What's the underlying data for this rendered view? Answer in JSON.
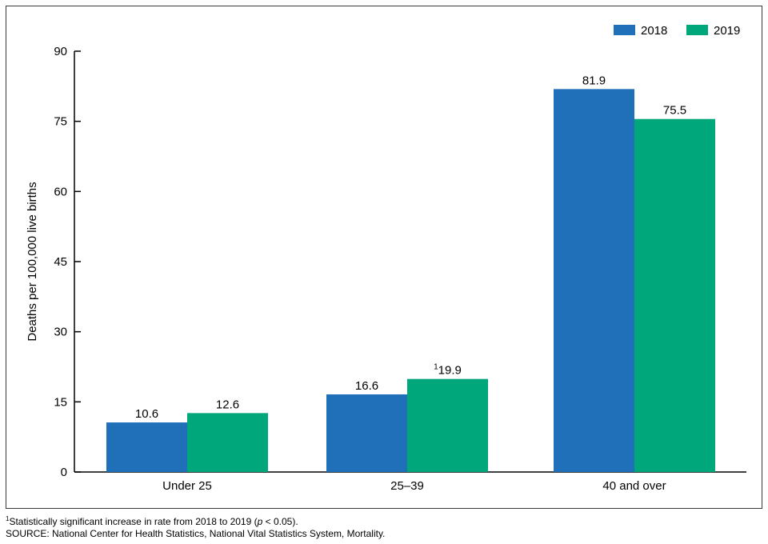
{
  "chart_data": {
    "type": "bar",
    "categories": [
      "Under 25",
      "25–39",
      "40 and over"
    ],
    "series": [
      {
        "name": "2018",
        "color": "#1f6fb9",
        "values": [
          10.6,
          16.6,
          81.9
        ],
        "labels": [
          "10.6",
          "16.6",
          "81.9"
        ],
        "markers": [
          "",
          "",
          ""
        ]
      },
      {
        "name": "2019",
        "color": "#00a77a",
        "values": [
          12.6,
          19.9,
          75.5
        ],
        "labels": [
          "12.6",
          "19.9",
          "75.5"
        ],
        "markers": [
          "",
          "1",
          ""
        ]
      }
    ],
    "title": "",
    "xlabel": "",
    "ylabel": "Deaths per 100,000 live births",
    "ylim": [
      0,
      90
    ],
    "yticks": [
      0,
      15,
      30,
      45,
      60,
      75,
      90
    ],
    "grid": false,
    "legend_position": "top-right"
  },
  "footnotes": {
    "note_marker": "1",
    "note_text_a": "Statistically significant increase in rate from 2018 to 2019 (",
    "note_p": "p",
    "note_text_b": " < 0.05).",
    "source": "SOURCE: National Center for Health Statistics, National Vital Statistics System, Mortality."
  }
}
